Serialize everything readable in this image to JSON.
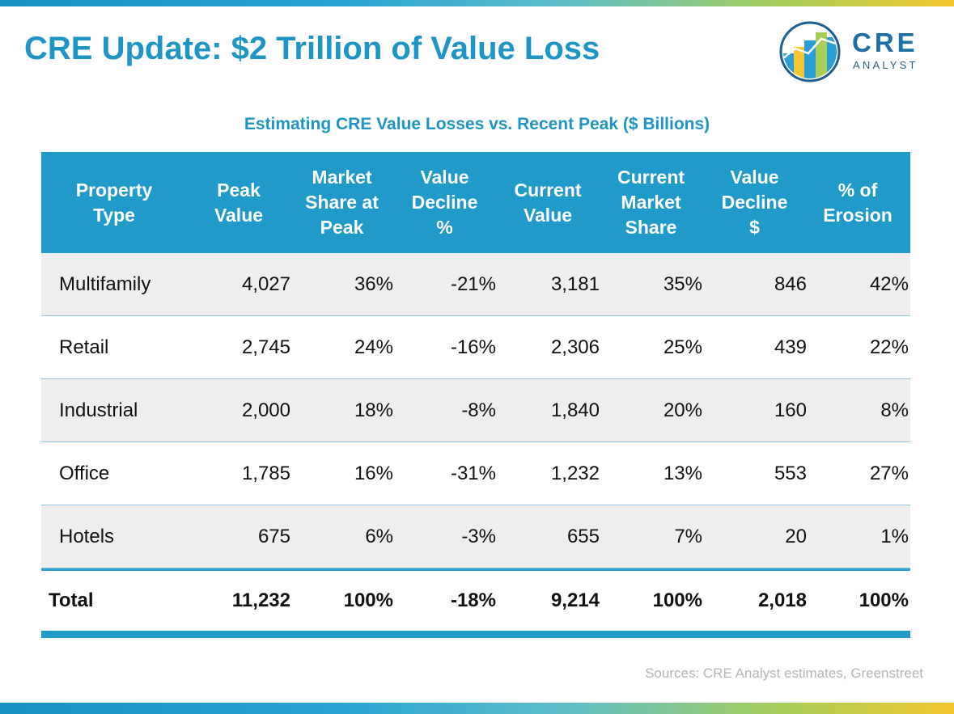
{
  "title": "CRE Update: $2 Trillion of Value Loss",
  "logo": {
    "line1": "CRE",
    "line2": "ANALYST"
  },
  "table": {
    "title": "Estimating CRE Value Losses vs. Recent Peak ($ Billions)",
    "headers": [
      "Property\nType",
      "Peak\nValue",
      "Market\nShare at\nPeak",
      "Value\nDecline\n%",
      "Current\nValue",
      "Current\nMarket\nShare",
      "Value\nDecline\n$",
      "% of\nErosion"
    ],
    "rows": [
      [
        "Multifamily",
        "4,027",
        "36%",
        "-21%",
        "3,181",
        "35%",
        "846",
        "42%"
      ],
      [
        "Retail",
        "2,745",
        "24%",
        "-16%",
        "2,306",
        "25%",
        "439",
        "22%"
      ],
      [
        "Industrial",
        "2,000",
        "18%",
        "-8%",
        "1,840",
        "20%",
        "160",
        "8%"
      ],
      [
        "Office",
        "1,785",
        "16%",
        "-31%",
        "1,232",
        "13%",
        "553",
        "27%"
      ],
      [
        "Hotels",
        "675",
        "6%",
        "-3%",
        "655",
        "7%",
        "20",
        "1%"
      ]
    ],
    "total": [
      "Total",
      "11,232",
      "100%",
      "-18%",
      "9,214",
      "100%",
      "2,018",
      "100%"
    ]
  },
  "sources": "Sources: CRE Analyst estimates, Greenstreet",
  "colors": {
    "accent": "#1f95c6",
    "header_bg": "#1f9ac9",
    "row_shade": "#eeeeee"
  }
}
